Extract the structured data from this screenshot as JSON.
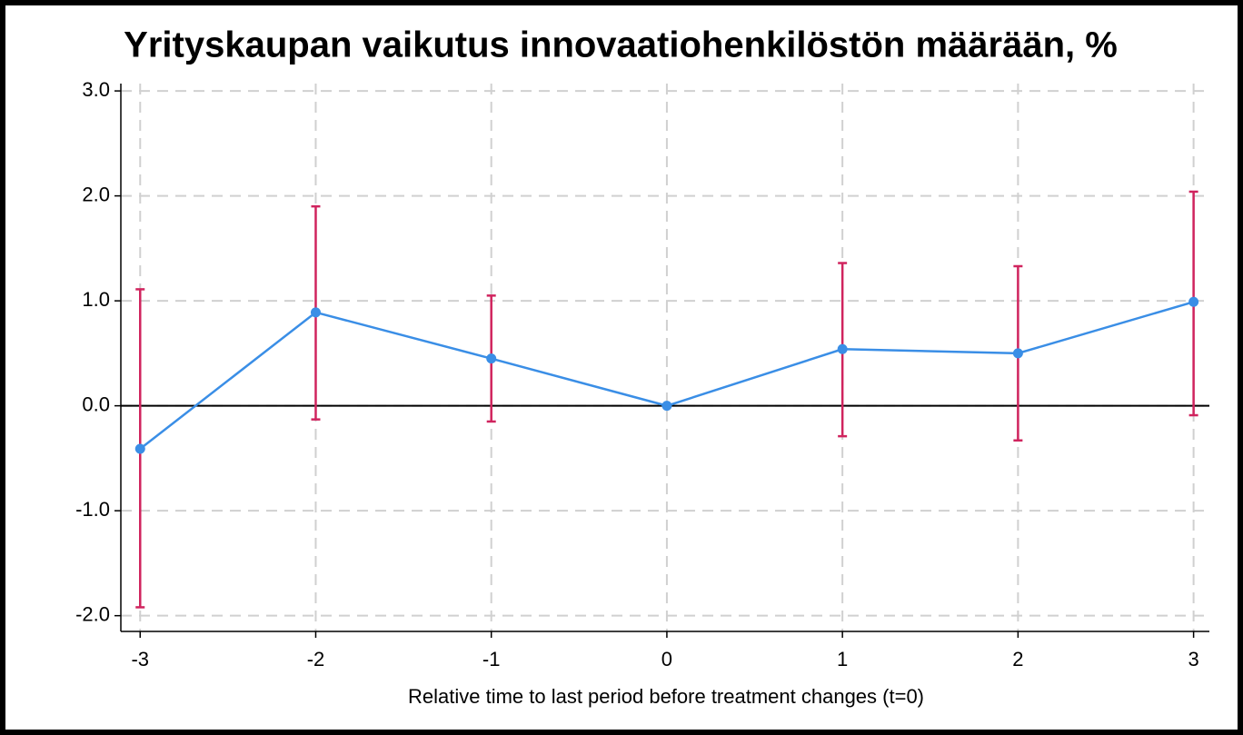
{
  "chart_data": {
    "type": "line",
    "title": "Yrityskaupan vaikutus innovaatiohenkilöstön määrään, %",
    "x_label": "Relative time to last period before treatment changes (t=0)",
    "x": [
      -3,
      -2,
      -1,
      0,
      1,
      2,
      3
    ],
    "series": [
      {
        "color": "#3a8ee6",
        "error_color": "#d0245e",
        "values": [
          -0.41,
          0.89,
          0.45,
          0,
          0.54,
          0.5,
          0.99
        ],
        "ci_low": [
          -1.92,
          -0.13,
          -0.15,
          null,
          -0.29,
          -0.33,
          -0.09
        ],
        "ci_high": [
          1.11,
          1.9,
          1.05,
          null,
          1.36,
          1.33,
          2.04
        ]
      }
    ],
    "xlim": [
      -3.11,
      3.09
    ],
    "ylim": [
      -2.15,
      3.07
    ],
    "xticks": [
      -3,
      -2,
      -1,
      0,
      1,
      2,
      3
    ],
    "yticks": [
      {
        "value": -2,
        "label": "-2.0"
      },
      {
        "value": -1,
        "label": "-1.0"
      },
      {
        "value": 0,
        "label": "0.0"
      },
      {
        "value": 1,
        "label": "1.0"
      },
      {
        "value": 2,
        "label": "2.0"
      },
      {
        "value": 3,
        "label": "3.0"
      }
    ],
    "reference_line": 0,
    "grid": true
  }
}
